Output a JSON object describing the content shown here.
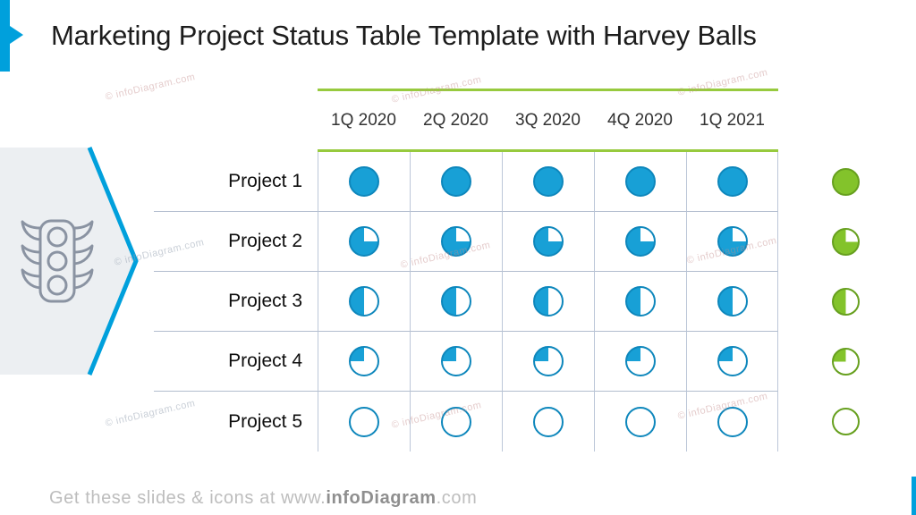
{
  "slide": {
    "title": "Marketing Project Status Table Template with Harvey Balls"
  },
  "chart_data": {
    "type": "table",
    "title": "Marketing Project Status Table Template with Harvey Balls",
    "columns": [
      "1Q 2020",
      "2Q 2020",
      "3Q 2020",
      "4Q 2020",
      "1Q 2021"
    ],
    "rows": [
      {
        "label": "Project 1",
        "values": [
          100,
          100,
          100,
          100,
          100
        ],
        "summary": 100
      },
      {
        "label": "Project 2",
        "values": [
          75,
          75,
          75,
          75,
          75
        ],
        "summary": 75
      },
      {
        "label": "Project 3",
        "values": [
          50,
          50,
          50,
          50,
          50
        ],
        "summary": 50
      },
      {
        "label": "Project 4",
        "values": [
          25,
          25,
          25,
          25,
          25
        ],
        "summary": 25
      },
      {
        "label": "Project 5",
        "values": [
          0,
          0,
          0,
          0,
          0
        ],
        "summary": 0
      }
    ],
    "cell_glyph": "harvey-ball",
    "value_unit": "percent-complete",
    "fill_direction": "counterclockwise-from-12-oclock",
    "cell_color": "blue",
    "summary_color": "green"
  },
  "footer": {
    "prefix": "Get these slides & icons at www.",
    "brand": "infoDiagram",
    "suffix": ".com"
  },
  "watermark_text": "© infoDiagram.com",
  "icons": {
    "left_graphic": "traffic-light"
  },
  "colors": {
    "accent_blue": "#00A0DC",
    "ball_blue": "#18A0D6",
    "ball_blue_stroke": "#0E87BC",
    "ball_green": "#83C32B",
    "ball_green_stroke": "#67A01F",
    "green_line": "#97CA3E",
    "grid_line": "#BCC7D8",
    "row_line": "#B2BDCE",
    "shape_gray": "#ECEFF2",
    "icon_gray": "#8A93A2",
    "title_text": "#1C1C1C",
    "header_text": "#333333",
    "label_text": "#0E0E0E",
    "footer_text": "#BDBDBD",
    "footer_brand": "#8F8F8F",
    "watermark_pink": "rgba(196,140,140,0.45)",
    "watermark_gray": "rgba(148,160,176,0.5)"
  }
}
